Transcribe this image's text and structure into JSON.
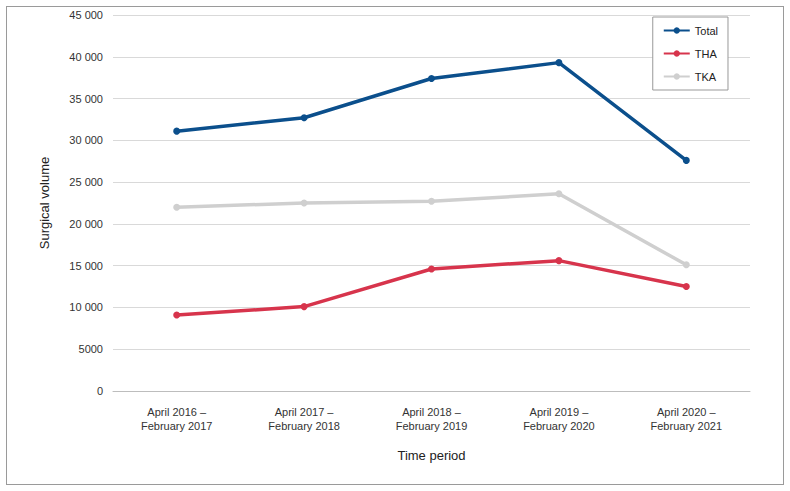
{
  "chart_data": {
    "type": "line",
    "x_label": "Time period",
    "y_label": "Surgical volume",
    "categories": [
      "April 2016 –\nFebruary 2017",
      "April 2017 –\nFebruary 2018",
      "April 2018 –\nFebruary 2019",
      "April 2019 –\nFebruary 2020",
      "April 2020 –\nFebruary 2021"
    ],
    "series": [
      {
        "name": "Total",
        "color": "#0b4f8c",
        "values": [
          31100,
          32700,
          37400,
          39300,
          27600
        ]
      },
      {
        "name": "THA",
        "color": "#d7344c",
        "values": [
          9100,
          10100,
          14600,
          15600,
          12500
        ]
      },
      {
        "name": "TKA",
        "color": "#cfcfcf",
        "values": [
          22000,
          22500,
          22700,
          23600,
          15100
        ]
      }
    ],
    "ylim": [
      0,
      45000
    ],
    "yticks": [
      0,
      5000,
      {
        "value": 10000,
        "label": "10 000"
      },
      {
        "value": 15000,
        "label": "15 000"
      },
      {
        "value": 20000,
        "label": "20 000"
      },
      {
        "value": 25000,
        "label": "25 000"
      },
      {
        "value": 30000,
        "label": "30 000"
      },
      {
        "value": 35000,
        "label": "35 000"
      },
      {
        "value": 40000,
        "label": "40 000"
      },
      {
        "value": 45000,
        "label": "45 000"
      }
    ],
    "grid": true,
    "legend": "upper right",
    "marker": "circle",
    "line_style": "solid"
  }
}
